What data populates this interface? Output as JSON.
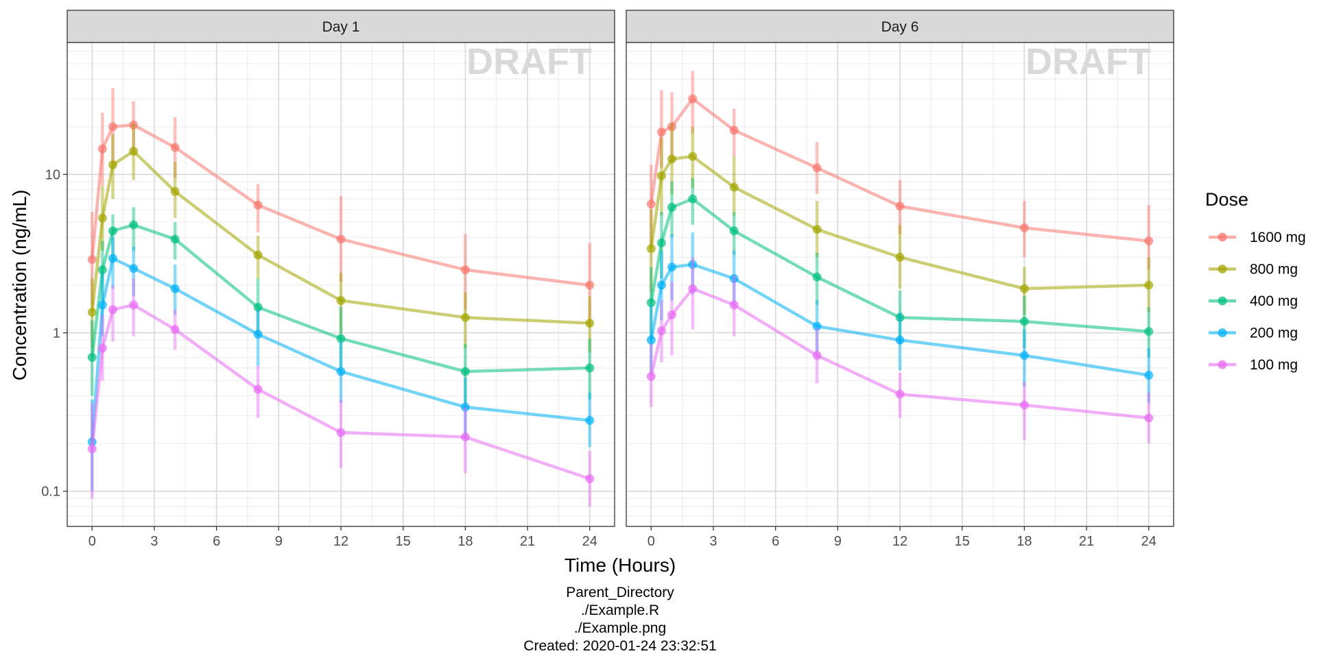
{
  "chart_data": {
    "type": "line",
    "y_scale": "log10",
    "ylim": [
      0.06,
      68
    ],
    "xlim": [
      -1.2,
      25.2
    ],
    "x_ticks": [
      0,
      3,
      6,
      9,
      12,
      15,
      18,
      21,
      24
    ],
    "y_ticks": [
      0.1,
      1,
      10
    ],
    "y_tick_labels": [
      "0.1",
      "1",
      "10"
    ],
    "xlabel": "Time (Hours)",
    "ylabel": "Concentration (ng/mL)",
    "grid": true,
    "legend": {
      "title": "Dose",
      "position": "right"
    },
    "watermark": "DRAFT",
    "x": [
      0,
      0.5,
      1,
      2,
      4,
      8,
      12,
      18,
      24
    ],
    "series_style": [
      {
        "name": "1600 mg",
        "color": "#F8766D"
      },
      {
        "name": "800 mg",
        "color": "#A3A500"
      },
      {
        "name": "400 mg",
        "color": "#00BF7D"
      },
      {
        "name": "200 mg",
        "color": "#00B0F6"
      },
      {
        "name": "100 mg",
        "color": "#E76BF3"
      }
    ],
    "panels": [
      {
        "label": "Day 1",
        "series": [
          {
            "name": "1600 mg",
            "values": [
              2.9,
              14.5,
              20,
              20.5,
              14.8,
              6.4,
              3.9,
              2.5,
              2.0
            ],
            "lower": [
              1.5,
              8.5,
              11.5,
              14,
              9.5,
              4.3,
              2.1,
              1.4,
              1.1
            ],
            "upper": [
              5.8,
              24.5,
              35,
              29,
              23,
              8.7,
              7.3,
              4.2,
              3.7
            ]
          },
          {
            "name": "800 mg",
            "values": [
              1.35,
              5.3,
              11.5,
              14,
              7.8,
              3.1,
              1.6,
              1.25,
              1.15
            ],
            "lower": [
              0.8,
              3.3,
              7,
              9.2,
              5.3,
              2.2,
              1.0,
              0.8,
              0.75
            ],
            "upper": [
              2.2,
              8.5,
              18,
              21,
              12,
              4.1,
              2.4,
              1.8,
              1.7
            ]
          },
          {
            "name": "400 mg",
            "values": [
              0.7,
              2.5,
              4.4,
              4.8,
              3.9,
              1.45,
              0.92,
              0.57,
              0.6
            ],
            "lower": [
              0.4,
              1.6,
              2.9,
              3.3,
              2.9,
              0.95,
              0.6,
              0.36,
              0.38
            ],
            "upper": [
              1.2,
              3.8,
              5.6,
              6.2,
              5.0,
              2.2,
              1.45,
              0.85,
              0.92
            ]
          },
          {
            "name": "200 mg",
            "values": [
              0.205,
              1.5,
              2.95,
              2.55,
              1.9,
              0.98,
              0.57,
              0.34,
              0.28
            ],
            "lower": [
              0.1,
              0.95,
              1.9,
              1.7,
              1.3,
              0.62,
              0.36,
              0.22,
              0.19
            ],
            "upper": [
              0.38,
              2.4,
              4.0,
              3.5,
              2.7,
              1.4,
              0.88,
              0.52,
              0.42
            ]
          },
          {
            "name": "100 mg",
            "values": [
              0.185,
              0.8,
              1.4,
              1.5,
              1.05,
              0.44,
              0.235,
              0.22,
              0.12
            ],
            "lower": [
              0.09,
              0.5,
              0.88,
              0.95,
              0.78,
              0.29,
              0.14,
              0.13,
              0.08
            ],
            "upper": [
              0.36,
              1.3,
              2.0,
              2.2,
              1.4,
              0.62,
              0.38,
              0.34,
              0.18
            ]
          }
        ]
      },
      {
        "label": "Day 6",
        "series": [
          {
            "name": "1600 mg",
            "values": [
              6.5,
              18.5,
              20,
              30,
              19,
              11,
              6.3,
              4.6,
              3.8
            ],
            "lower": [
              3.5,
              11,
              12,
              18,
              13,
              7.5,
              4.2,
              3.0,
              2.5
            ],
            "upper": [
              11.5,
              34,
              33,
              45,
              26,
              16,
              9.2,
              6.8,
              6.4
            ]
          },
          {
            "name": "800 mg",
            "values": [
              3.4,
              9.8,
              12.5,
              13,
              8.3,
              4.5,
              3.0,
              1.9,
              2.0
            ],
            "lower": [
              1.8,
              5.5,
              7.5,
              8.2,
              5.5,
              3.0,
              1.9,
              1.3,
              1.35
            ],
            "upper": [
              6.0,
              17,
              21,
              20,
              13,
              6.8,
              4.8,
              2.6,
              3.0
            ]
          },
          {
            "name": "400 mg",
            "values": [
              1.55,
              3.7,
              6.2,
              7.0,
              4.4,
              2.25,
              1.25,
              1.18,
              1.02
            ],
            "lower": [
              0.9,
              2.2,
              4.0,
              4.8,
              3.1,
              1.5,
              0.85,
              0.8,
              0.7
            ],
            "upper": [
              2.6,
              5.8,
              9.0,
              9.5,
              5.8,
              3.2,
              1.85,
              1.7,
              1.45
            ]
          },
          {
            "name": "200 mg",
            "values": [
              0.9,
              2.0,
              2.6,
              2.7,
              2.2,
              1.1,
              0.9,
              0.72,
              0.54
            ],
            "lower": [
              0.55,
              1.2,
              1.6,
              1.75,
              1.5,
              0.75,
              0.58,
              0.46,
              0.36
            ],
            "upper": [
              1.5,
              3.3,
              4.2,
              4.3,
              3.3,
              1.6,
              1.35,
              1.05,
              0.8
            ]
          },
          {
            "name": "100 mg",
            "values": [
              0.53,
              1.03,
              1.3,
              1.9,
              1.5,
              0.72,
              0.41,
              0.35,
              0.29
            ],
            "lower": [
              0.34,
              0.65,
              0.72,
              1.05,
              0.95,
              0.48,
              0.29,
              0.21,
              0.2
            ],
            "upper": [
              0.85,
              1.6,
              2.1,
              3.0,
              2.3,
              1.08,
              0.56,
              0.49,
              0.42
            ]
          }
        ]
      }
    ]
  },
  "caption": {
    "line1": "Parent_Directory",
    "line2": "./Example.R",
    "line3": "./Example.png",
    "line4": "Created: 2020-01-24 23:32:51"
  }
}
